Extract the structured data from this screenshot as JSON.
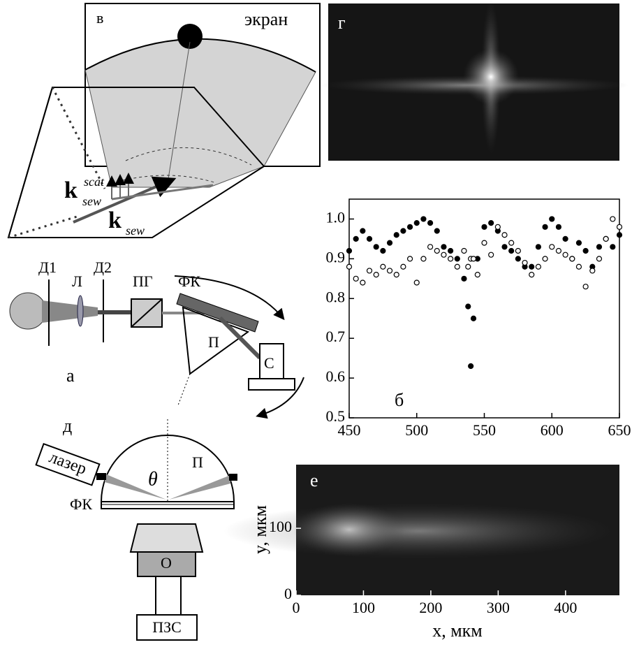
{
  "diagram_top": {
    "label": "в",
    "screen": "экран",
    "k_scat": {
      "symbol": "k",
      "sub": "sew",
      "sup": "scat"
    },
    "k": {
      "symbol": "k",
      "sub": "sew"
    }
  },
  "image_top": {
    "label": "г"
  },
  "setup": {
    "label": "а",
    "parts": [
      "Д1",
      "Л",
      "Д2",
      "ПГ",
      "ФК",
      "П",
      "С"
    ]
  },
  "microscope": {
    "label": "д",
    "laser": "лазер",
    "angle": "θ",
    "prism": "П",
    "crystal": "ФК",
    "objective": "О",
    "camera": "ПЗС"
  },
  "chart_data": [
    {
      "type": "scatter",
      "label": "б",
      "x": [
        450,
        455,
        460,
        465,
        470,
        475,
        480,
        485,
        490,
        495,
        500,
        505,
        510,
        515,
        520,
        525,
        530,
        535,
        538,
        540,
        542,
        545,
        550,
        555,
        560,
        565,
        570,
        575,
        580,
        585,
        590,
        595,
        600,
        605,
        610,
        615,
        620,
        625,
        630,
        635,
        640,
        645,
        650
      ],
      "series": [
        {
          "color": "#000000",
          "filled": true,
          "values": [
            0.92,
            0.95,
            0.97,
            0.95,
            0.93,
            0.92,
            0.94,
            0.96,
            0.97,
            0.98,
            0.99,
            1.0,
            0.99,
            0.97,
            0.93,
            0.92,
            0.9,
            0.85,
            0.78,
            0.63,
            0.75,
            0.9,
            0.98,
            0.99,
            0.97,
            0.93,
            0.92,
            0.9,
            0.88,
            0.88,
            0.93,
            0.98,
            1.0,
            0.98,
            0.95,
            0.9,
            0.94,
            0.92,
            0.88,
            0.93,
            0.95,
            0.93,
            0.96
          ]
        },
        {
          "color": "#000000",
          "filled": false,
          "values": [
            0.88,
            0.85,
            0.84,
            0.87,
            0.86,
            0.88,
            0.87,
            0.86,
            0.88,
            0.9,
            0.84,
            0.9,
            0.93,
            0.92,
            0.91,
            0.9,
            0.88,
            0.92,
            0.88,
            0.9,
            0.9,
            0.86,
            0.94,
            0.91,
            0.98,
            0.96,
            0.94,
            0.92,
            0.89,
            0.86,
            0.88,
            0.9,
            0.93,
            0.92,
            0.91,
            0.9,
            0.88,
            0.83,
            0.87,
            0.9,
            0.95,
            1.0,
            0.98
          ]
        }
      ],
      "xlim": [
        450,
        650
      ],
      "ylim": [
        0.5,
        1.05
      ],
      "xticks": [
        450,
        500,
        550,
        600,
        650
      ],
      "yticks": [
        0.5,
        0.6,
        0.7,
        0.8,
        0.9,
        {
          "value": 1,
          "label": "1.0"
        }
      ]
    },
    {
      "type": "image",
      "label": "е",
      "xlabel": "x, мкм",
      "ylabel": "y, мкм",
      "xlim": [
        0,
        480
      ],
      "ylim": [
        0,
        195
      ],
      "xticks": [
        0,
        100,
        200,
        300,
        400
      ],
      "yticks": [
        0,
        100
      ]
    }
  ]
}
